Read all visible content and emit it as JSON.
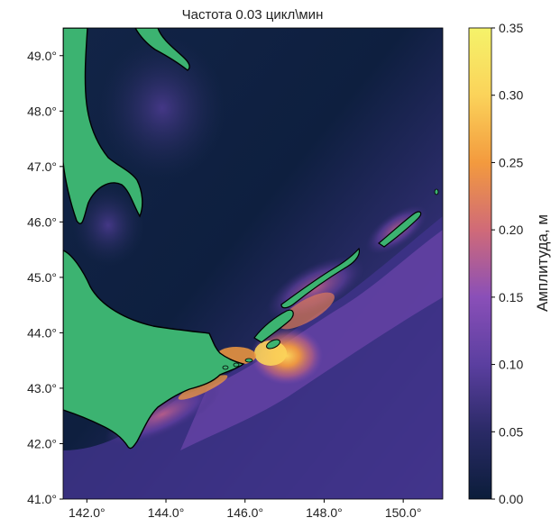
{
  "chart_data": {
    "type": "heatmap",
    "title": "Частота 0.03 цикл\\мин",
    "xlabel": "",
    "ylabel": "",
    "x_ticks": [
      {
        "value": 142,
        "label": "142.0°"
      },
      {
        "value": 144,
        "label": "144.0°"
      },
      {
        "value": 146,
        "label": "146.0°"
      },
      {
        "value": 148,
        "label": "148.0°"
      },
      {
        "value": 150,
        "label": "150.0°"
      }
    ],
    "y_ticks": [
      {
        "value": 41,
        "label": "41.0°"
      },
      {
        "value": 42,
        "label": "42.0°"
      },
      {
        "value": 43,
        "label": "43.0°"
      },
      {
        "value": 44,
        "label": "44.0°"
      },
      {
        "value": 45,
        "label": "45.0°"
      },
      {
        "value": 46,
        "label": "46.0°"
      },
      {
        "value": 47,
        "label": "47.0°"
      },
      {
        "value": 48,
        "label": "48.0°"
      },
      {
        "value": 49,
        "label": "49.0°"
      }
    ],
    "xlim": [
      141.4,
      151.0
    ],
    "ylim": [
      41.0,
      49.5
    ],
    "land_color": "#3cb371",
    "coastline_color": "#000000",
    "colorbar": {
      "label": "Амплитуда, м",
      "range": [
        0.0,
        0.35
      ],
      "ticks": [
        {
          "value": 0.0,
          "label": "0.00"
        },
        {
          "value": 0.05,
          "label": "0.05"
        },
        {
          "value": 0.1,
          "label": "0.10"
        },
        {
          "value": 0.15,
          "label": "0.15"
        },
        {
          "value": 0.2,
          "label": "0.20"
        },
        {
          "value": 0.25,
          "label": "0.25"
        },
        {
          "value": 0.3,
          "label": "0.30"
        },
        {
          "value": 0.35,
          "label": "0.35"
        }
      ],
      "colormap": [
        "#0b1d3a",
        "#2a2a66",
        "#5b3fa0",
        "#8a4fb8",
        "#d06a78",
        "#f39a3e",
        "#fbd35a",
        "#f5f36a"
      ]
    }
  }
}
